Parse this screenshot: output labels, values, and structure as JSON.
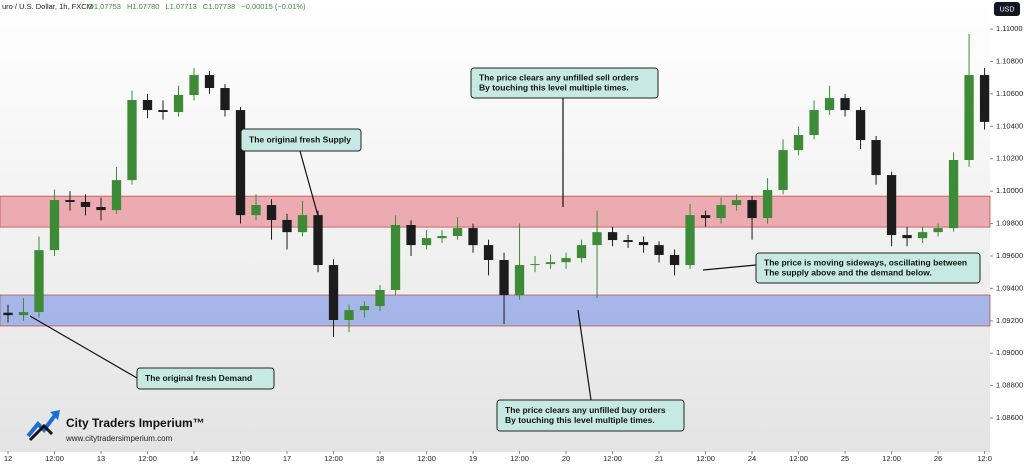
{
  "chart_data": {
    "type": "candlestick",
    "title": "uro / U.S. Dollar, 1h, FXCM",
    "legend_values": [
      "O1.07753",
      "H1.07780",
      "L1.07713",
      "C1.07738",
      "−0.00015 (−0.01%)"
    ],
    "currency": "USD",
    "up_color": "#3d8b37",
    "down_color": "#1c1c1c",
    "x": [
      0,
      1,
      2,
      3,
      4,
      5,
      6,
      7,
      8,
      9,
      10,
      11,
      12,
      13,
      14,
      15,
      16,
      17,
      18,
      19,
      20,
      21,
      22,
      23,
      24,
      25,
      26,
      27,
      28,
      29,
      30,
      31,
      32,
      33,
      34,
      35,
      36,
      37,
      38,
      39,
      40,
      41,
      42,
      43,
      44,
      45,
      46,
      47,
      48,
      49,
      50,
      51,
      52,
      53,
      54,
      55,
      56,
      57,
      58,
      59,
      60,
      61,
      62,
      63
    ],
    "open": [
      1.0925,
      1.09235,
      1.09254,
      1.09636,
      1.09945,
      1.09933,
      1.09902,
      1.09883,
      1.10068,
      1.10562,
      1.105,
      1.10488,
      1.10593,
      1.10716,
      1.10636,
      1.105,
      1.09852,
      1.09914,
      1.09822,
      1.09747,
      1.09852,
      1.09544,
      1.09205,
      1.09266,
      1.09291,
      1.0939,
      1.09791,
      1.09667,
      1.0971,
      1.09723,
      1.09772,
      1.09667,
      1.09575,
      1.09359,
      1.09544,
      1.0955,
      1.09562,
      1.09587,
      1.09667,
      1.09747,
      1.09698,
      1.09686,
      1.09667,
      1.09606,
      1.09544,
      1.09852,
      1.09834,
      1.09914,
      1.09945,
      1.09834,
      1.10007,
      1.10253,
      1.10346,
      1.105,
      1.10574,
      1.105,
      1.10315,
      1.10099,
      1.09729,
      1.0971,
      1.09747,
      1.09772,
      1.10192,
      1.10716
    ],
    "high": [
      1.093,
      1.0934,
      1.0972,
      1.1001,
      1.1,
      1.0998,
      1.0996,
      1.1015,
      1.1062,
      1.106,
      1.1056,
      1.1065,
      1.1076,
      1.1074,
      1.1066,
      1.1052,
      1.0998,
      1.0995,
      1.0986,
      1.0994,
      1.0988,
      1.0958,
      1.093,
      1.0932,
      1.0942,
      1.0985,
      1.0982,
      1.0976,
      1.0976,
      1.0984,
      1.098,
      1.097,
      1.0962,
      1.098,
      1.096,
      1.0961,
      1.0962,
      1.097,
      1.0988,
      1.0978,
      1.0973,
      1.0972,
      1.0969,
      1.0964,
      1.0992,
      1.0988,
      1.0996,
      1.0998,
      1.0997,
      1.1008,
      1.1032,
      1.104,
      1.1056,
      1.1065,
      1.106,
      1.1052,
      1.1034,
      1.1012,
      1.0978,
      1.0978,
      1.098,
      1.1024,
      1.1097,
      1.1076
    ],
    "low": [
      1.0919,
      1.092,
      1.0922,
      1.096,
      1.0988,
      1.0985,
      1.0982,
      1.0986,
      1.1004,
      1.1045,
      1.1044,
      1.1046,
      1.1056,
      1.106,
      1.1046,
      1.098,
      1.0982,
      1.097,
      1.0964,
      1.0972,
      1.095,
      1.091,
      1.0913,
      1.0922,
      1.0926,
      1.0936,
      1.096,
      1.0964,
      1.0968,
      1.097,
      1.0962,
      1.0948,
      1.0918,
      1.0933,
      1.095,
      1.0952,
      1.0952,
      1.0956,
      1.0934,
      1.0966,
      1.0965,
      1.0962,
      1.0956,
      1.0948,
      1.0952,
      1.0978,
      1.098,
      1.0988,
      1.097,
      1.098,
      1.0998,
      1.1022,
      1.1032,
      1.1047,
      1.1046,
      1.1026,
      1.1004,
      1.0966,
      1.0966,
      1.0968,
      1.0972,
      1.0975,
      1.1015,
      1.1038
    ],
    "close": [
      1.09235,
      1.09254,
      1.09636,
      1.09945,
      1.09933,
      1.09902,
      1.09883,
      1.10068,
      1.10562,
      1.105,
      1.10488,
      1.10593,
      1.10716,
      1.10636,
      1.105,
      1.09852,
      1.09914,
      1.09822,
      1.09747,
      1.09852,
      1.09544,
      1.09205,
      1.09266,
      1.09291,
      1.0939,
      1.09791,
      1.09667,
      1.0971,
      1.09723,
      1.09772,
      1.09667,
      1.09575,
      1.09359,
      1.09544,
      1.0955,
      1.09562,
      1.09587,
      1.09667,
      1.09747,
      1.09698,
      1.09686,
      1.09667,
      1.09606,
      1.09544,
      1.09852,
      1.09834,
      1.09914,
      1.09945,
      1.09834,
      1.10007,
      1.10253,
      1.10346,
      1.105,
      1.10574,
      1.105,
      1.10315,
      1.10099,
      1.09729,
      1.0971,
      1.09747,
      1.09772,
      1.10192,
      1.10716,
      1.10427
    ],
    "xlim": [
      -0.516,
      63.35
    ],
    "xticks": [
      {
        "value": 0,
        "label": "12"
      },
      {
        "value": 3,
        "label": "12:00"
      },
      {
        "value": 6,
        "label": "13"
      },
      {
        "value": 9,
        "label": "12:00"
      },
      {
        "value": 12,
        "label": "14"
      },
      {
        "value": 15,
        "label": "12:00"
      },
      {
        "value": 18,
        "label": "17"
      },
      {
        "value": 21,
        "label": "12:00"
      },
      {
        "value": 24,
        "label": "18"
      },
      {
        "value": 27,
        "label": "12:00"
      },
      {
        "value": 30,
        "label": "19"
      },
      {
        "value": 33,
        "label": "12:00"
      },
      {
        "value": 36,
        "label": "20"
      },
      {
        "value": 39,
        "label": "12:00"
      },
      {
        "value": 42,
        "label": "21"
      },
      {
        "value": 45,
        "label": "12:00"
      },
      {
        "value": 48,
        "label": "24"
      },
      {
        "value": 51,
        "label": "12:00"
      },
      {
        "value": 54,
        "label": "25"
      },
      {
        "value": 57,
        "label": "12:00"
      },
      {
        "value": 60,
        "label": "26"
      },
      {
        "value": 63,
        "label": "12:0"
      }
    ],
    "ylim": [
      1.08403,
      1.11179
    ],
    "yticks": [
      {
        "value": 1.11,
        "label": "1.11000"
      },
      {
        "value": 1.108,
        "label": "1.10800"
      },
      {
        "value": 1.106,
        "label": "1.10600"
      },
      {
        "value": 1.104,
        "label": "1.10400"
      },
      {
        "value": 1.102,
        "label": "1.10200"
      },
      {
        "value": 1.1,
        "label": "1.10000"
      },
      {
        "value": 1.098,
        "label": "1.09800"
      },
      {
        "value": 1.096,
        "label": "1.09600"
      },
      {
        "value": 1.094,
        "label": "1.09400"
      },
      {
        "value": 1.092,
        "label": "1.09200"
      },
      {
        "value": 1.09,
        "label": "1.09000"
      },
      {
        "value": 1.088,
        "label": "1.08800"
      },
      {
        "value": 1.086,
        "label": "1.08600"
      }
    ],
    "supply_zone": {
      "low": 1.09778,
      "high": 1.09969,
      "color": "#e8939a"
    },
    "demand_zone": {
      "low": 1.09168,
      "high": 1.09359,
      "color": "#8ea3e6"
    },
    "annotations": [
      {
        "lines": [
          "The original fresh Supply"
        ]
      },
      {
        "lines": [
          "The price clears any unfilled sell orders",
          "By touching this level multiple times."
        ]
      },
      {
        "lines": [
          "The price is moving sideways, oscillating between",
          "The supply above and the demand below."
        ]
      },
      {
        "lines": [
          "The original fresh Demand"
        ]
      },
      {
        "lines": [
          "The price clears any unfilled buy orders",
          "By touching this level multiple times."
        ]
      }
    ],
    "brand": {
      "name": "City Traders Imperium™",
      "url": "www.citytradersimperium.com"
    }
  }
}
